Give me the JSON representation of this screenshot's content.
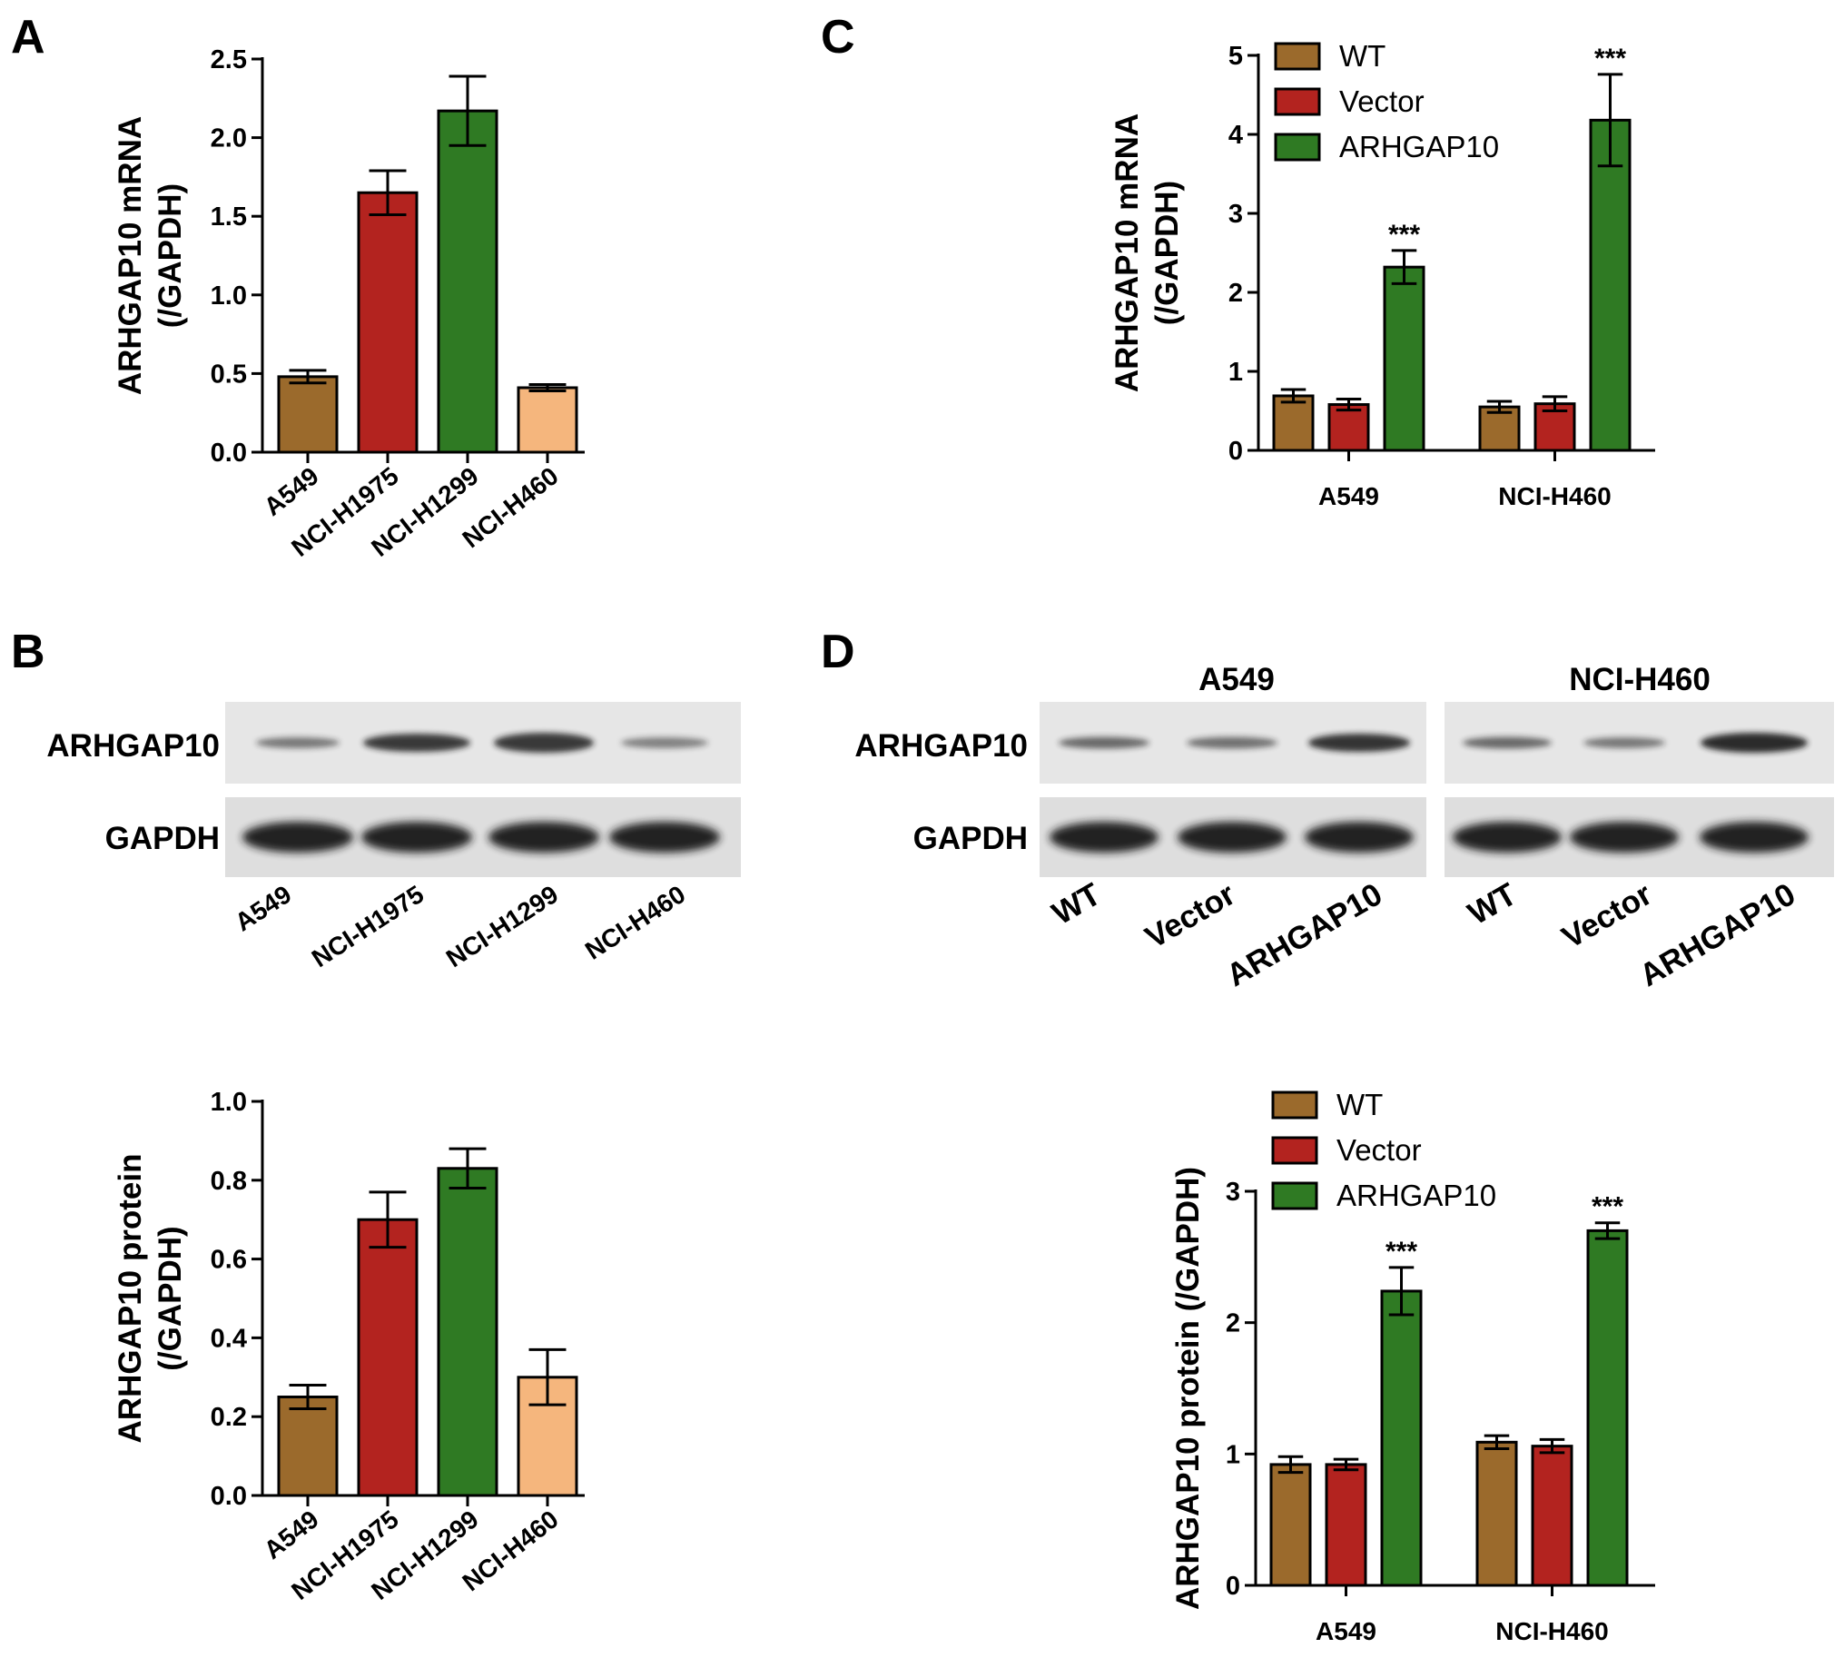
{
  "panels": {
    "a": "A",
    "b": "B",
    "c": "C",
    "d": "D"
  },
  "colors": {
    "WT": "#9b6a2c",
    "Vector": "#b3231f",
    "ARHGAP10": "#2f7a23",
    "NCI-H460": "#f5b67d"
  },
  "blot_b": {
    "rows": [
      "ARHGAP10",
      "GAPDH"
    ],
    "lanes": [
      "A549",
      "NCI-H1975",
      "NCI-H1299",
      "NCI-H460"
    ]
  },
  "blot_d": {
    "groups": [
      "A549",
      "NCI-H460"
    ],
    "rows": [
      "ARHGAP10",
      "GAPDH"
    ],
    "lanes": [
      "WT",
      "Vector",
      "ARHGAP10"
    ]
  },
  "chart_data": [
    {
      "id": "A",
      "type": "bar",
      "ylabel_line1": "ARHGAP10 mRNA",
      "ylabel_line2": "(/GAPDH)",
      "categories": [
        "A549",
        "NCI-H1975",
        "NCI-H1299",
        "NCI-H460"
      ],
      "values": [
        0.48,
        1.65,
        2.17,
        0.41
      ],
      "errors": [
        0.04,
        0.14,
        0.22,
        0.02
      ],
      "yticks": [
        "0.0",
        "0.5",
        "1.0",
        "1.5",
        "2.0",
        "2.5"
      ],
      "ylim": [
        0,
        2.5
      ]
    },
    {
      "id": "B",
      "type": "bar",
      "ylabel_line1": "ARHGAP10 protein",
      "ylabel_line2": "(/GAPDH)",
      "categories": [
        "A549",
        "NCI-H1975",
        "NCI-H1299",
        "NCI-H460"
      ],
      "values": [
        0.25,
        0.7,
        0.83,
        0.3
      ],
      "errors": [
        0.03,
        0.07,
        0.05,
        0.07
      ],
      "yticks": [
        "0.0",
        "0.2",
        "0.4",
        "0.6",
        "0.8",
        "1.0"
      ],
      "ylim": [
        0,
        1.0
      ]
    },
    {
      "id": "C",
      "type": "bar",
      "ylabel_line1": "ARHGAP10 mRNA",
      "ylabel_line2": "(/GAPDH)",
      "categories": [
        "A549",
        "NCI-H460"
      ],
      "series": [
        {
          "name": "WT",
          "values": [
            0.69,
            0.55
          ],
          "errors": [
            0.08,
            0.07
          ]
        },
        {
          "name": "Vector",
          "values": [
            0.58,
            0.59
          ],
          "errors": [
            0.07,
            0.09
          ]
        },
        {
          "name": "ARHGAP10",
          "values": [
            2.32,
            4.18
          ],
          "errors": [
            0.21,
            0.58
          ]
        }
      ],
      "annotations": [
        "***",
        "***"
      ],
      "yticks": [
        "0",
        "1",
        "2",
        "3",
        "4",
        "5"
      ],
      "ylim": [
        0,
        5
      ]
    },
    {
      "id": "D",
      "type": "bar",
      "ylabel_line1": "ARHGAP10 protein (/GAPDH)",
      "categories": [
        "A549",
        "NCI-H460"
      ],
      "series": [
        {
          "name": "WT",
          "values": [
            0.92,
            1.09
          ],
          "errors": [
            0.06,
            0.05
          ]
        },
        {
          "name": "Vector",
          "values": [
            0.92,
            1.06
          ],
          "errors": [
            0.04,
            0.05
          ]
        },
        {
          "name": "ARHGAP10",
          "values": [
            2.24,
            2.7
          ],
          "errors": [
            0.18,
            0.06
          ]
        }
      ],
      "annotations": [
        "***",
        "***"
      ],
      "yticks": [
        "0",
        "1",
        "2",
        "3"
      ],
      "ylim": [
        0,
        3
      ]
    }
  ]
}
